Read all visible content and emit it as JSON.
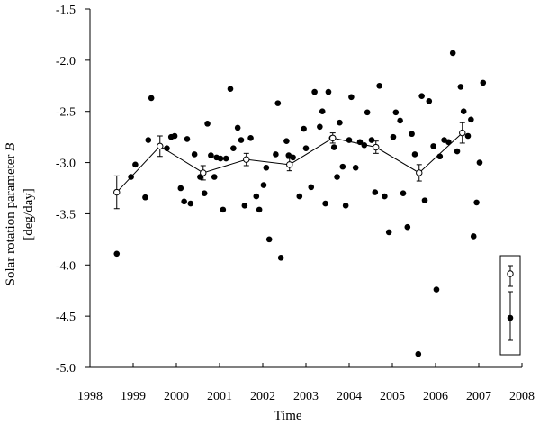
{
  "chart_data": {
    "type": "scatter",
    "xlabel": "Time",
    "ylabel_line1": "Solar rotation parameter ",
    "ylabel_var": "B",
    "ylabel_line2": "[deg/day]",
    "xlim": [
      1998,
      2008
    ],
    "ylim": [
      -5.0,
      -1.5
    ],
    "xticks": [
      1998,
      1999,
      2000,
      2001,
      2002,
      2003,
      2004,
      2005,
      2006,
      2007,
      2008
    ],
    "xtick_labels": [
      "1998",
      "1999",
      "2000",
      "2001",
      "2002",
      "2003",
      "2004",
      "2005",
      "2006",
      "2007",
      "2008"
    ],
    "yticks": [
      -1.5,
      -2.0,
      -2.5,
      -3.0,
      -3.5,
      -4.0,
      -4.5,
      -5.0
    ],
    "ytick_labels": [
      "-1.5",
      "-2.0",
      "-2.5",
      "-3.0",
      "-3.5",
      "-4.0",
      "-4.5",
      "-5.0"
    ],
    "grid": false,
    "legend": "bottom-right, two markers with error bars and no text",
    "series": [
      {
        "marker": "filled-circle",
        "points": [
          [
            1998.62,
            -3.89
          ],
          [
            1998.95,
            -3.14
          ],
          [
            1999.05,
            -3.02
          ],
          [
            1999.28,
            -3.34
          ],
          [
            1999.35,
            -2.78
          ],
          [
            1999.42,
            -2.37
          ],
          [
            1999.78,
            -2.86
          ],
          [
            1999.88,
            -2.75
          ],
          [
            1999.96,
            -2.74
          ],
          [
            2000.1,
            -3.25
          ],
          [
            2000.18,
            -3.38
          ],
          [
            2000.25,
            -2.77
          ],
          [
            2000.33,
            -3.4
          ],
          [
            2000.42,
            -2.92
          ],
          [
            2000.55,
            -3.14
          ],
          [
            2000.65,
            -3.3
          ],
          [
            2000.72,
            -2.62
          ],
          [
            2000.8,
            -2.93
          ],
          [
            2000.88,
            -3.14
          ],
          [
            2000.93,
            -2.95
          ],
          [
            2001.02,
            -2.96
          ],
          [
            2001.08,
            -3.46
          ],
          [
            2001.15,
            -2.96
          ],
          [
            2001.25,
            -2.28
          ],
          [
            2001.32,
            -2.86
          ],
          [
            2001.42,
            -2.66
          ],
          [
            2001.5,
            -2.78
          ],
          [
            2001.58,
            -3.42
          ],
          [
            2001.72,
            -2.76
          ],
          [
            2001.85,
            -3.33
          ],
          [
            2001.92,
            -3.46
          ],
          [
            2002.02,
            -3.22
          ],
          [
            2002.08,
            -3.05
          ],
          [
            2002.15,
            -3.75
          ],
          [
            2002.3,
            -2.92
          ],
          [
            2002.35,
            -2.42
          ],
          [
            2002.42,
            -3.93
          ],
          [
            2002.55,
            -2.79
          ],
          [
            2002.6,
            -2.93
          ],
          [
            2002.7,
            -2.95
          ],
          [
            2002.85,
            -3.33
          ],
          [
            2002.95,
            -2.67
          ],
          [
            2003.0,
            -2.86
          ],
          [
            2003.12,
            -3.24
          ],
          [
            2003.2,
            -2.31
          ],
          [
            2003.32,
            -2.65
          ],
          [
            2003.38,
            -2.5
          ],
          [
            2003.45,
            -3.4
          ],
          [
            2003.52,
            -2.31
          ],
          [
            2003.6,
            -2.76
          ],
          [
            2003.65,
            -2.85
          ],
          [
            2003.72,
            -3.14
          ],
          [
            2003.78,
            -2.61
          ],
          [
            2003.85,
            -3.04
          ],
          [
            2003.92,
            -3.42
          ],
          [
            2004.0,
            -2.78
          ],
          [
            2004.05,
            -2.36
          ],
          [
            2004.15,
            -3.05
          ],
          [
            2004.25,
            -2.8
          ],
          [
            2004.35,
            -2.83
          ],
          [
            2004.42,
            -2.51
          ],
          [
            2004.52,
            -2.78
          ],
          [
            2004.6,
            -3.29
          ],
          [
            2004.7,
            -2.25
          ],
          [
            2004.82,
            -3.33
          ],
          [
            2004.92,
            -3.68
          ],
          [
            2005.02,
            -2.75
          ],
          [
            2005.08,
            -2.51
          ],
          [
            2005.18,
            -2.59
          ],
          [
            2005.25,
            -3.3
          ],
          [
            2005.35,
            -3.63
          ],
          [
            2005.45,
            -2.72
          ],
          [
            2005.52,
            -2.92
          ],
          [
            2005.6,
            -4.87
          ],
          [
            2005.68,
            -2.35
          ],
          [
            2005.75,
            -3.37
          ],
          [
            2005.85,
            -2.4
          ],
          [
            2005.95,
            -2.84
          ],
          [
            2006.02,
            -4.24
          ],
          [
            2006.1,
            -2.94
          ],
          [
            2006.2,
            -2.78
          ],
          [
            2006.3,
            -2.8
          ],
          [
            2006.4,
            -1.93
          ],
          [
            2006.5,
            -2.89
          ],
          [
            2006.58,
            -2.26
          ],
          [
            2006.65,
            -2.5
          ],
          [
            2006.75,
            -2.74
          ],
          [
            2006.82,
            -2.58
          ],
          [
            2006.88,
            -3.72
          ],
          [
            2006.95,
            -3.39
          ],
          [
            2007.02,
            -3.0
          ],
          [
            2007.1,
            -2.22
          ]
        ]
      },
      {
        "marker": "open-circle",
        "line": true,
        "errorbars": true,
        "points": [
          [
            1998.62,
            -3.29,
            0.16
          ],
          [
            1999.62,
            -2.84,
            0.1
          ],
          [
            2000.62,
            -3.1,
            0.07
          ],
          [
            2001.62,
            -2.97,
            0.06
          ],
          [
            2002.62,
            -3.02,
            0.06
          ],
          [
            2003.62,
            -2.76,
            0.05
          ],
          [
            2004.62,
            -2.85,
            0.06
          ],
          [
            2005.62,
            -3.1,
            0.08
          ],
          [
            2006.62,
            -2.71,
            0.1
          ]
        ]
      }
    ]
  }
}
